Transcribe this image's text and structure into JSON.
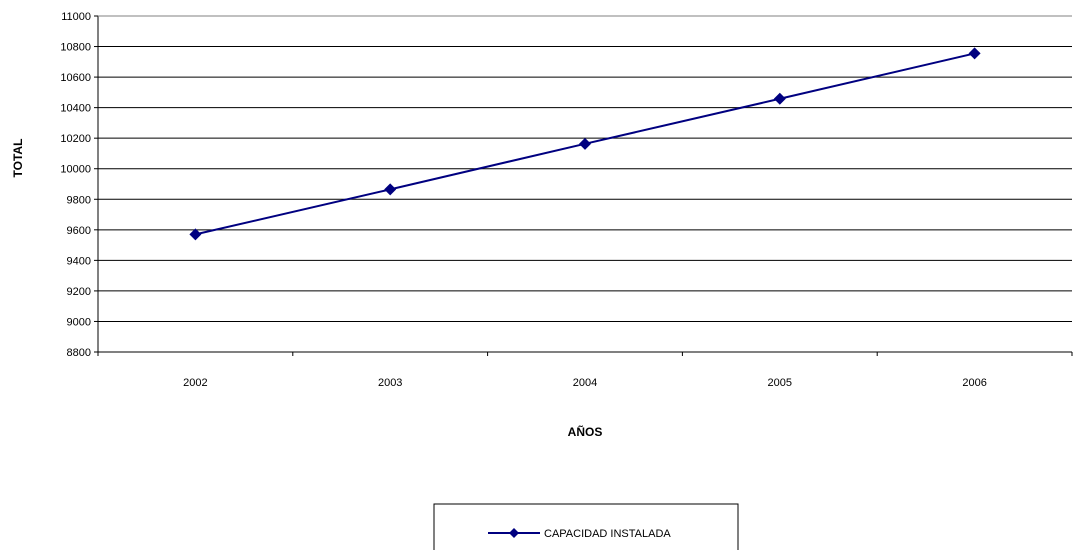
{
  "chart_data": {
    "type": "line",
    "title": "",
    "xlabel": "AÑOS",
    "ylabel": "TOTAL",
    "categories": [
      "2002",
      "2003",
      "2004",
      "2005",
      "2006"
    ],
    "series": [
      {
        "name": "CAPACIDAD INSTALADA",
        "values": [
          9570,
          9865,
          10163,
          10458,
          10755
        ],
        "color": "#000080",
        "marker": "diamond"
      }
    ],
    "ylim": [
      8800,
      11000
    ],
    "yticks": [
      "8800",
      "9000",
      "9200",
      "9400",
      "9600",
      "9800",
      "10000",
      "10200",
      "10400",
      "10600",
      "10800",
      "11000"
    ],
    "grid": true,
    "legend_position": "bottom-center"
  }
}
